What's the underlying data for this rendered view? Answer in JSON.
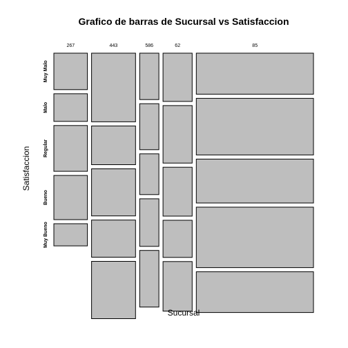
{
  "chart_data": {
    "type": "mosaic",
    "title": "Grafico de barras de Sucursal vs Satisfaccion",
    "xlabel": "Sucursal",
    "ylabel": "Satisfaccion",
    "x_categories": [
      "267",
      "443",
      "586",
      "62",
      "85"
    ],
    "y_categories": [
      "Muy Malo",
      "Malo",
      "Regular",
      "Bueno",
      "Muy Bueno"
    ],
    "x_proportions": [
      0.138,
      0.181,
      0.079,
      0.12,
      0.482
    ],
    "cells": [
      [
        0.161,
        0.303,
        0.205,
        0.213,
        0.181
      ],
      [
        0.122,
        0.171,
        0.203,
        0.254,
        0.25
      ],
      [
        0.202,
        0.208,
        0.18,
        0.216,
        0.194
      ],
      [
        0.195,
        0.164,
        0.21,
        0.164,
        0.267
      ],
      [
        0.098,
        0.253,
        0.25,
        0.219,
        0.18
      ]
    ],
    "fill_color": "#bebebe",
    "border_color": "#000000",
    "grid": false,
    "legend": "none"
  }
}
